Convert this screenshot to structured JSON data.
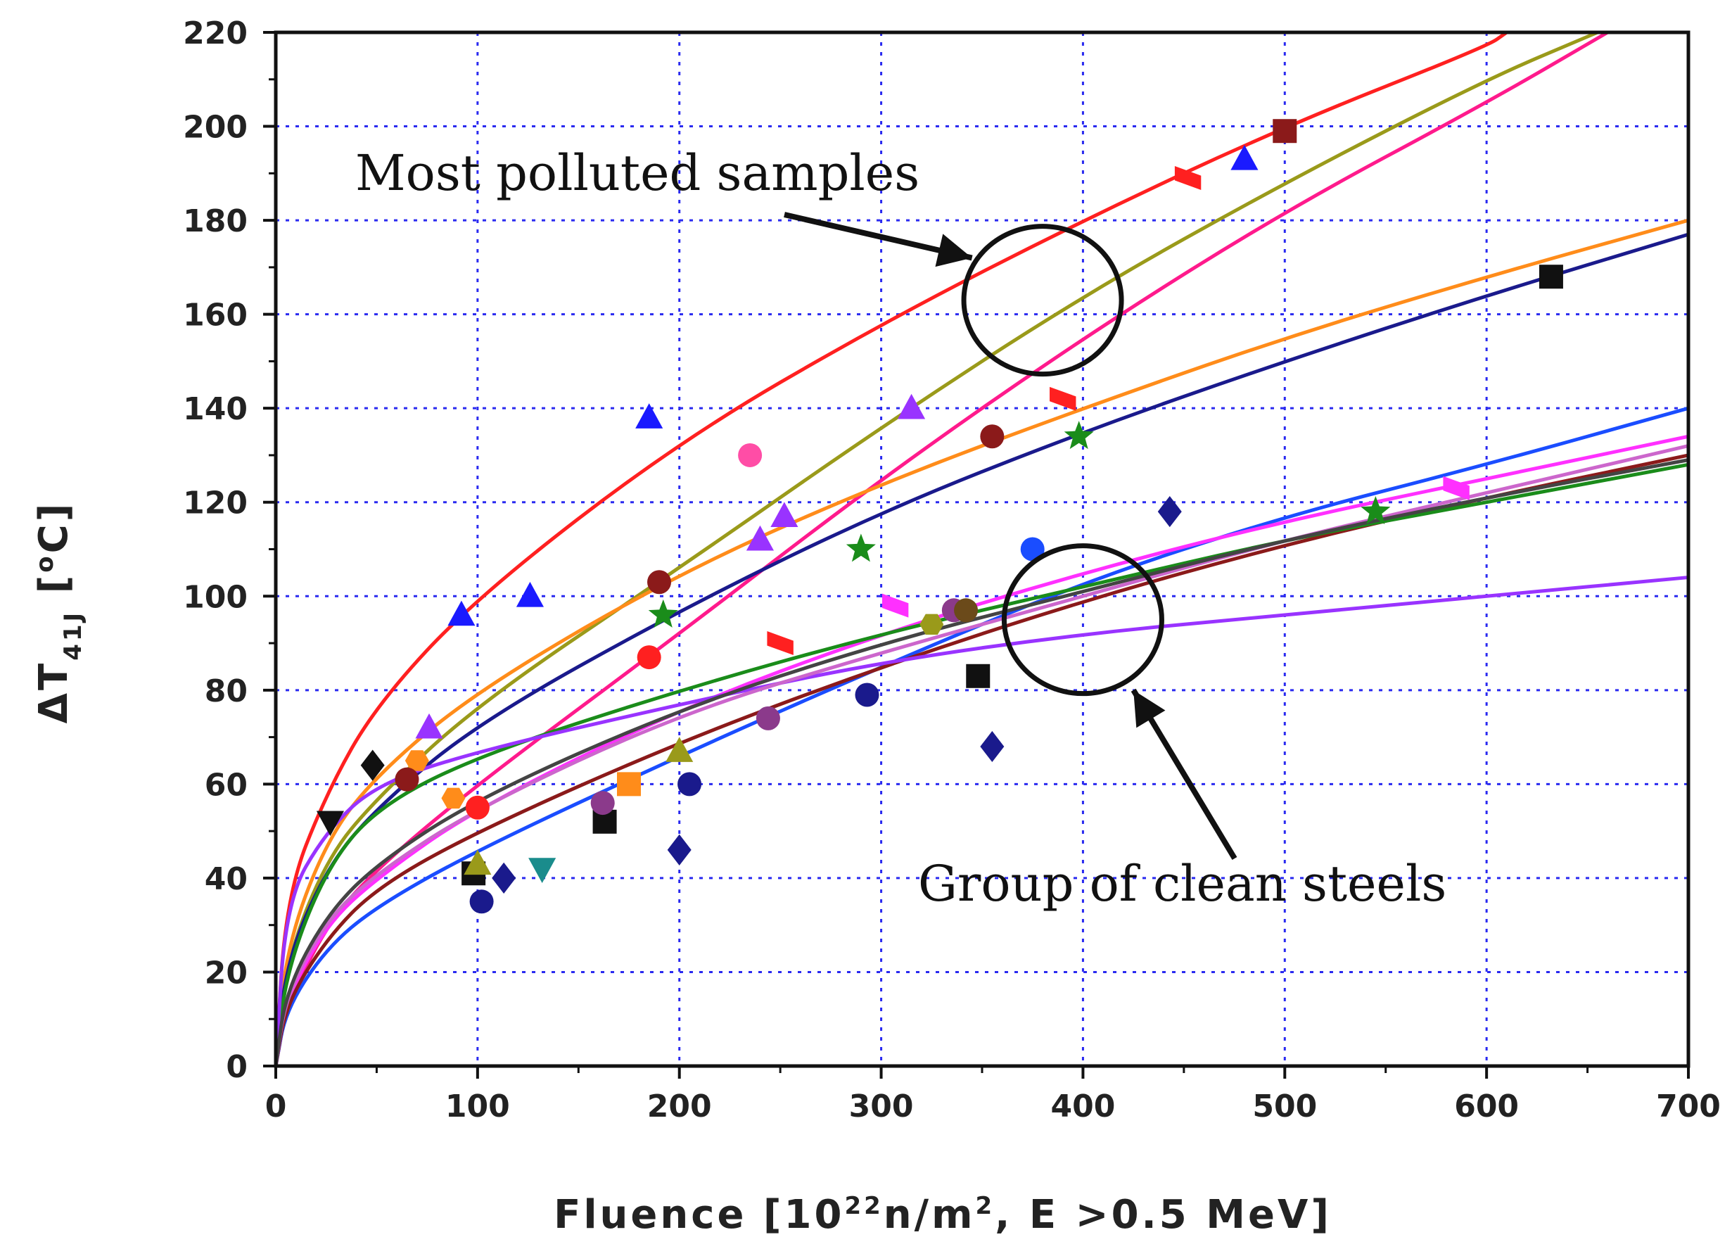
{
  "chart_data": {
    "type": "scatter",
    "xlabel": "Fluence  [10²² n/m², E >0.5 MeV]",
    "ylabel": "ΔT₄₁J [°C]",
    "xlim": [
      0,
      700
    ],
    "ylim": [
      0,
      220
    ],
    "xticks": [
      0,
      100,
      200,
      300,
      400,
      500,
      600,
      700
    ],
    "yticks": [
      0,
      20,
      40,
      60,
      80,
      100,
      120,
      140,
      160,
      180,
      200,
      220
    ],
    "grid": true,
    "legend": "none",
    "annotations": [
      {
        "text": "Most polluted samples",
        "arrow_to": [
          345,
          172
        ],
        "circle_center": [
          380,
          163
        ]
      },
      {
        "text": "Group of clean steels",
        "arrow_to": [
          425,
          80
        ],
        "circle_center": [
          400,
          95
        ]
      }
    ],
    "fit_curves": [
      {
        "color": "#ff2020",
        "points": [
          [
            0,
            0
          ],
          [
            5,
            36
          ],
          [
            25,
            58
          ],
          [
            50,
            77
          ],
          [
            100,
            100
          ],
          [
            200,
            133
          ],
          [
            300,
            158
          ],
          [
            400,
            180
          ],
          [
            500,
            200
          ],
          [
            600,
            217
          ],
          [
            610,
            220
          ]
        ]
      },
      {
        "color": "#9a9a1a",
        "points": [
          [
            0,
            0
          ],
          [
            5,
            22
          ],
          [
            25,
            44
          ],
          [
            50,
            57
          ],
          [
            100,
            77
          ],
          [
            200,
            106
          ],
          [
            300,
            136
          ],
          [
            400,
            164
          ],
          [
            500,
            188
          ],
          [
            600,
            210
          ],
          [
            655,
            220
          ]
        ]
      },
      {
        "color": "#ff1a8c",
        "points": [
          [
            0,
            0
          ],
          [
            5,
            12
          ],
          [
            25,
            30
          ],
          [
            50,
            42
          ],
          [
            100,
            60
          ],
          [
            200,
            92
          ],
          [
            300,
            125
          ],
          [
            400,
            155
          ],
          [
            500,
            182
          ],
          [
            600,
            205
          ],
          [
            660,
            220
          ]
        ]
      },
      {
        "color": "#ff8c1a",
        "points": [
          [
            0,
            0
          ],
          [
            5,
            25
          ],
          [
            25,
            48
          ],
          [
            50,
            62
          ],
          [
            100,
            80
          ],
          [
            200,
            105
          ],
          [
            300,
            124
          ],
          [
            400,
            140
          ],
          [
            500,
            155
          ],
          [
            600,
            168
          ],
          [
            700,
            180
          ]
        ]
      },
      {
        "color": "#1a1a8c",
        "points": [
          [
            0,
            0
          ],
          [
            5,
            22
          ],
          [
            25,
            42
          ],
          [
            50,
            55
          ],
          [
            100,
            73
          ],
          [
            200,
            97
          ],
          [
            300,
            118
          ],
          [
            400,
            135
          ],
          [
            500,
            150
          ],
          [
            600,
            164
          ],
          [
            700,
            177
          ]
        ]
      },
      {
        "color": "#1a4dff",
        "points": [
          [
            0,
            0
          ],
          [
            5,
            12
          ],
          [
            25,
            25
          ],
          [
            50,
            34
          ],
          [
            100,
            46
          ],
          [
            200,
            66
          ],
          [
            300,
            85
          ],
          [
            400,
            103
          ],
          [
            500,
            117
          ],
          [
            600,
            128
          ],
          [
            700,
            140
          ]
        ]
      },
      {
        "color": "#ff30ff",
        "points": [
          [
            0,
            0
          ],
          [
            5,
            14
          ],
          [
            25,
            30
          ],
          [
            50,
            40
          ],
          [
            100,
            55
          ],
          [
            200,
            76
          ],
          [
            300,
            92
          ],
          [
            400,
            105
          ],
          [
            500,
            116
          ],
          [
            600,
            125
          ],
          [
            700,
            134
          ]
        ]
      },
      {
        "color": "#8b1a1a",
        "points": [
          [
            0,
            0
          ],
          [
            5,
            13
          ],
          [
            25,
            27
          ],
          [
            50,
            38
          ],
          [
            100,
            50
          ],
          [
            200,
            69
          ],
          [
            300,
            85
          ],
          [
            400,
            99
          ],
          [
            500,
            111
          ],
          [
            600,
            121
          ],
          [
            700,
            130
          ]
        ]
      },
      {
        "color": "#1a8c1a",
        "points": [
          [
            0,
            0
          ],
          [
            5,
            20
          ],
          [
            25,
            42
          ],
          [
            50,
            55
          ],
          [
            100,
            66
          ],
          [
            200,
            80
          ],
          [
            300,
            92
          ],
          [
            400,
            102
          ],
          [
            500,
            112
          ],
          [
            600,
            120
          ],
          [
            700,
            128
          ]
        ]
      },
      {
        "color": "#9933ff",
        "points": [
          [
            0,
            0
          ],
          [
            5,
            35
          ],
          [
            25,
            50
          ],
          [
            50,
            60
          ],
          [
            100,
            67
          ],
          [
            200,
            77
          ],
          [
            300,
            86
          ],
          [
            400,
            92
          ],
          [
            500,
            96
          ],
          [
            600,
            100
          ],
          [
            700,
            104
          ]
        ]
      },
      {
        "color": "#cc66cc",
        "points": [
          [
            0,
            0
          ],
          [
            5,
            15
          ],
          [
            25,
            31
          ],
          [
            50,
            41
          ],
          [
            100,
            55
          ],
          [
            200,
            75
          ],
          [
            300,
            88
          ],
          [
            400,
            100
          ],
          [
            500,
            112
          ],
          [
            600,
            122
          ],
          [
            700,
            132
          ]
        ]
      },
      {
        "color": "#444444",
        "points": [
          [
            0,
            0
          ],
          [
            5,
            16
          ],
          [
            25,
            32
          ],
          [
            50,
            43
          ],
          [
            100,
            57
          ],
          [
            200,
            76
          ],
          [
            300,
            90
          ],
          [
            400,
            101
          ],
          [
            500,
            112
          ],
          [
            600,
            121
          ],
          [
            700,
            129
          ]
        ]
      }
    ],
    "markers": [
      {
        "shape": "triangle",
        "color": "#1a1aff",
        "x": 480,
        "y": 193
      },
      {
        "shape": "triangle",
        "color": "#1a1aff",
        "x": 185,
        "y": 138
      },
      {
        "shape": "triangle",
        "color": "#1a1aff",
        "x": 126,
        "y": 100
      },
      {
        "shape": "triangle",
        "color": "#1a1aff",
        "x": 92,
        "y": 96
      },
      {
        "shape": "triangle",
        "color": "#9933ff",
        "x": 76,
        "y": 72
      },
      {
        "shape": "triangle",
        "color": "#9933ff",
        "x": 240,
        "y": 112
      },
      {
        "shape": "triangle",
        "color": "#9933ff",
        "x": 252,
        "y": 117
      },
      {
        "shape": "triangle",
        "color": "#9933ff",
        "x": 315,
        "y": 140
      },
      {
        "shape": "square",
        "color": "#8b1a1a",
        "x": 500,
        "y": 199
      },
      {
        "shape": "square",
        "color": "#111111",
        "x": 632,
        "y": 168
      },
      {
        "shape": "square",
        "color": "#111111",
        "x": 348,
        "y": 83
      },
      {
        "shape": "square",
        "color": "#111111",
        "x": 163,
        "y": 52
      },
      {
        "shape": "square",
        "color": "#111111",
        "x": 98,
        "y": 41
      },
      {
        "shape": "square",
        "color": "#ff8c1a",
        "x": 175,
        "y": 60
      },
      {
        "shape": "circle",
        "color": "#ff4da6",
        "x": 235,
        "y": 130
      },
      {
        "shape": "circle",
        "color": "#8b1a1a",
        "x": 355,
        "y": 134
      },
      {
        "shape": "circle",
        "color": "#8b1a1a",
        "x": 190,
        "y": 103
      },
      {
        "shape": "circle",
        "color": "#1a1a8c",
        "x": 293,
        "y": 79
      },
      {
        "shape": "circle",
        "color": "#1a1a8c",
        "x": 205,
        "y": 60
      },
      {
        "shape": "circle",
        "color": "#1a1a8c",
        "x": 102,
        "y": 35
      },
      {
        "shape": "circle",
        "color": "#ff2020",
        "x": 185,
        "y": 87
      },
      {
        "shape": "circle",
        "color": "#8b3a8b",
        "x": 162,
        "y": 56
      },
      {
        "shape": "circle",
        "color": "#8b3a8b",
        "x": 244,
        "y": 74
      },
      {
        "shape": "diamond",
        "color": "#1a1a8c",
        "x": 443,
        "y": 118
      },
      {
        "shape": "diamond",
        "color": "#1a1a8c",
        "x": 355,
        "y": 68
      },
      {
        "shape": "diamond",
        "color": "#1a1a8c",
        "x": 200,
        "y": 46
      },
      {
        "shape": "diamond",
        "color": "#1a1a8c",
        "x": 113,
        "y": 40
      },
      {
        "shape": "diamond",
        "color": "#111111",
        "x": 48,
        "y": 64
      },
      {
        "shape": "star",
        "color": "#1a8c1a",
        "x": 398,
        "y": 134
      },
      {
        "shape": "star",
        "color": "#1a8c1a",
        "x": 290,
        "y": 110
      },
      {
        "shape": "star",
        "color": "#1a8c1a",
        "x": 192,
        "y": 96
      },
      {
        "shape": "star",
        "color": "#1a8c1a",
        "x": 545,
        "y": 118
      },
      {
        "shape": "bowtie",
        "color": "#ff2020",
        "x": 452,
        "y": 189
      },
      {
        "shape": "bowtie",
        "color": "#ff2020",
        "x": 390,
        "y": 142
      },
      {
        "shape": "bowtie",
        "color": "#ff2020",
        "x": 250,
        "y": 90
      },
      {
        "shape": "bowtie",
        "color": "#ff30ff",
        "x": 307,
        "y": 98
      },
      {
        "shape": "bowtie",
        "color": "#ff30ff",
        "x": 585,
        "y": 123
      },
      {
        "shape": "invtriangle",
        "color": "#1a8c8c",
        "x": 132,
        "y": 42
      },
      {
        "shape": "invtriangle",
        "color": "#111111",
        "x": 27,
        "y": 52
      },
      {
        "shape": "triangle",
        "color": "#9a9a1a",
        "x": 100,
        "y": 43
      },
      {
        "shape": "triangle",
        "color": "#9a9a1a",
        "x": 200,
        "y": 67
      },
      {
        "shape": "hexagon",
        "color": "#9a9a1a",
        "x": 325,
        "y": 94
      },
      {
        "shape": "hexagon",
        "color": "#ff8c1a",
        "x": 70,
        "y": 65
      },
      {
        "shape": "hexagon",
        "color": "#ff8c1a",
        "x": 88,
        "y": 57
      },
      {
        "shape": "circle",
        "color": "#8b1a1a",
        "x": 65,
        "y": 61
      },
      {
        "shape": "circle",
        "color": "#ff2020",
        "x": 100,
        "y": 55
      },
      {
        "shape": "circle",
        "color": "#8b3a8b",
        "x": 336,
        "y": 97
      },
      {
        "shape": "circle",
        "color": "#6b4a1a",
        "x": 342,
        "y": 97
      },
      {
        "shape": "circle",
        "color": "#1a4dff",
        "x": 375,
        "y": 110
      }
    ]
  },
  "text": {
    "annotation_polluted": "Most polluted samples",
    "annotation_clean": "Group of clean steels",
    "xlabel_main": "Fluence  [10",
    "xlabel_sup": "22",
    "xlabel_mid": "n/m",
    "xlabel_sup2": "2",
    "xlabel_end": ", E >0.5 MeV]",
    "ylabel_main": "ΔT",
    "ylabel_sub": "41J",
    "ylabel_bracket_open": " [",
    "ylabel_sup": "o",
    "ylabel_end": "C]"
  }
}
